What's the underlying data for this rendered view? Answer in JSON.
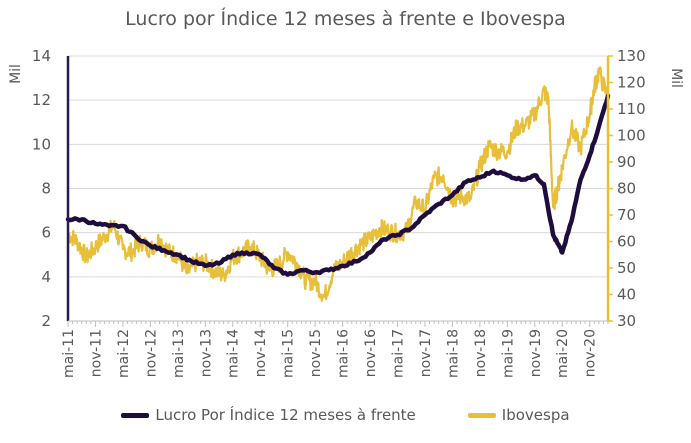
{
  "chart_data": {
    "type": "line",
    "title": "Lucro por Índice 12 meses à frente e Ibovespa",
    "y_left": {
      "unit": "Mil",
      "range": [
        2,
        14
      ],
      "ticks": [
        "2",
        "4",
        "6",
        "8",
        "10",
        "12",
        "14"
      ]
    },
    "y_right": {
      "unit": "Mil",
      "range": [
        30,
        130
      ],
      "ticks": [
        "30",
        "40",
        "50",
        "60",
        "70",
        "80",
        "90",
        "100",
        "110",
        "120",
        "130"
      ]
    },
    "x_start": "2011-05",
    "x_end": "2021-03",
    "x_ticks": [
      "mai-11",
      "nov-11",
      "mai-12",
      "nov-12",
      "mai-13",
      "nov-13",
      "mai-14",
      "nov-14",
      "mai-15",
      "nov-15",
      "mai-16",
      "nov-16",
      "mai-17",
      "nov-17",
      "mai-18",
      "nov-18",
      "mai-19",
      "nov-19",
      "mai-20",
      "nov-20"
    ],
    "grid": true,
    "legend_position": "bottom",
    "series": [
      {
        "name": "Lucro Por Índice 12 meses à frente",
        "axis": "left",
        "color": "#1f0d3d",
        "x": [
          "2011-05",
          "2011-08",
          "2011-11",
          "2012-02",
          "2012-05",
          "2012-08",
          "2012-11",
          "2013-02",
          "2013-05",
          "2013-08",
          "2013-11",
          "2014-02",
          "2014-05",
          "2014-08",
          "2014-11",
          "2015-02",
          "2015-05",
          "2015-08",
          "2015-11",
          "2016-02",
          "2016-05",
          "2016-08",
          "2016-11",
          "2017-02",
          "2017-05",
          "2017-08",
          "2017-11",
          "2018-02",
          "2018-05",
          "2018-08",
          "2018-11",
          "2019-02",
          "2019-05",
          "2019-08",
          "2019-11",
          "2020-01",
          "2020-03",
          "2020-04",
          "2020-05",
          "2020-07",
          "2020-09",
          "2020-11",
          "2021-01",
          "2021-03"
        ],
        "values": [
          6.6,
          6.6,
          6.4,
          6.3,
          6.3,
          5.8,
          5.4,
          5.2,
          5.0,
          4.7,
          4.5,
          4.6,
          5.0,
          5.1,
          5.0,
          4.4,
          4.1,
          4.3,
          4.2,
          4.3,
          4.5,
          4.7,
          5.1,
          5.7,
          5.9,
          6.2,
          6.8,
          7.3,
          7.7,
          8.3,
          8.5,
          8.8,
          8.6,
          8.4,
          8.6,
          8.2,
          5.9,
          5.5,
          5.1,
          6.5,
          8.4,
          9.5,
          10.8,
          12.2
        ]
      },
      {
        "name": "Ibovespa",
        "axis": "right",
        "color": "#e8bf3a",
        "x": [
          "2011-05",
          "2011-07",
          "2011-09",
          "2011-11",
          "2012-01",
          "2012-03",
          "2012-05",
          "2012-07",
          "2012-09",
          "2012-11",
          "2013-01",
          "2013-03",
          "2013-05",
          "2013-07",
          "2013-09",
          "2013-11",
          "2014-01",
          "2014-03",
          "2014-05",
          "2014-07",
          "2014-09",
          "2014-11",
          "2015-01",
          "2015-03",
          "2015-05",
          "2015-07",
          "2015-09",
          "2015-11",
          "2016-01",
          "2016-03",
          "2016-05",
          "2016-07",
          "2016-09",
          "2016-11",
          "2017-01",
          "2017-03",
          "2017-05",
          "2017-07",
          "2017-09",
          "2017-11",
          "2018-01",
          "2018-03",
          "2018-05",
          "2018-07",
          "2018-09",
          "2018-11",
          "2019-01",
          "2019-03",
          "2019-05",
          "2019-07",
          "2019-09",
          "2019-11",
          "2020-01",
          "2020-02",
          "2020-03",
          "2020-04",
          "2020-05",
          "2020-07",
          "2020-09",
          "2020-11",
          "2020-12",
          "2021-01",
          "2021-03"
        ],
        "values": [
          63,
          60,
          54,
          58,
          62,
          66,
          57,
          56,
          60,
          57,
          61,
          56,
          55,
          48,
          52,
          52,
          49,
          47,
          54,
          56,
          58,
          54,
          49,
          51,
          56,
          52,
          45,
          45,
          39,
          49,
          52,
          56,
          59,
          61,
          65,
          64,
          63,
          64,
          75,
          72,
          84,
          85,
          76,
          77,
          76,
          88,
          96,
          94,
          94,
          103,
          104,
          108,
          117,
          113,
          73,
          80,
          88,
          103,
          95,
          108,
          118,
          124,
          114
        ]
      }
    ]
  }
}
